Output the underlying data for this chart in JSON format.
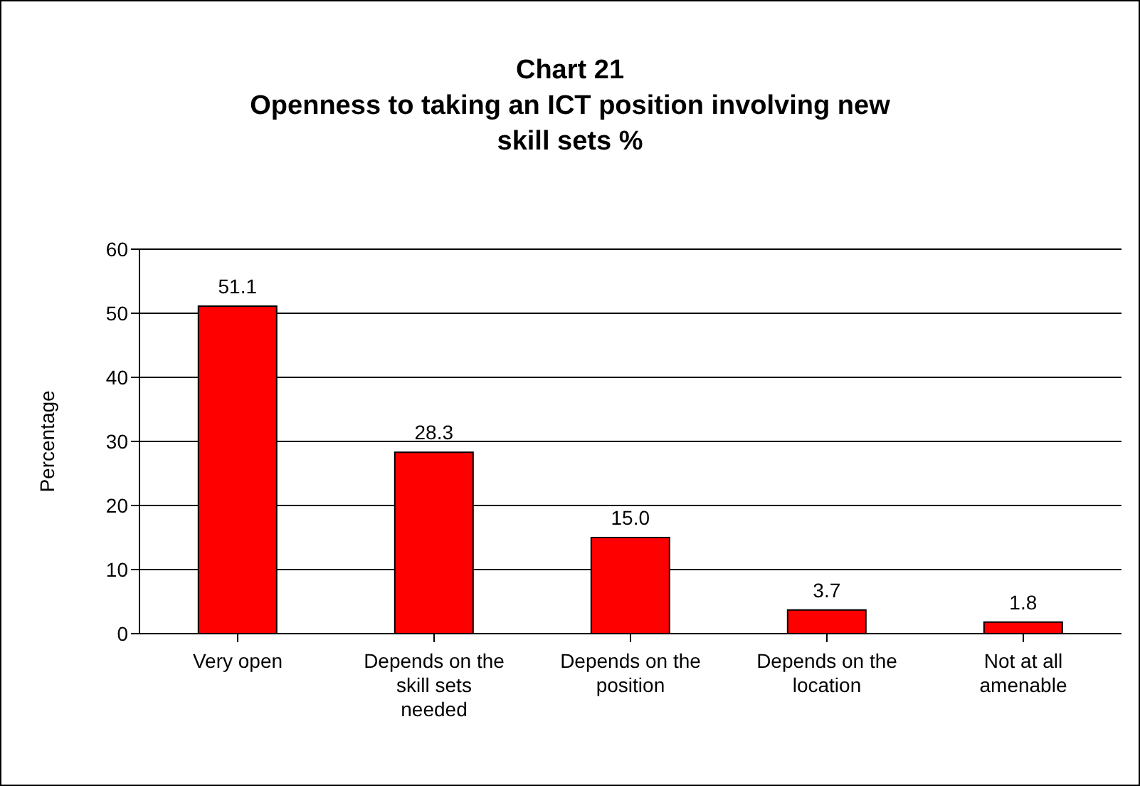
{
  "chart_data": {
    "type": "bar",
    "title": "Chart 21",
    "subtitle": "Openness to taking an ICT position involving new skill sets %",
    "ylabel": "Percentage",
    "categories": [
      "Very open",
      "Depends on the skill sets needed",
      "Depends on the position",
      "Depends on the location",
      "Not at all amenable"
    ],
    "values": [
      51.1,
      28.3,
      15.0,
      3.7,
      1.8
    ],
    "value_labels": [
      "51.1",
      "28.3",
      "15.0",
      "3.7",
      "1.8"
    ],
    "color": "#ff0000",
    "ylim": [
      0,
      60
    ],
    "yticks": [
      0,
      10,
      20,
      30,
      40,
      50,
      60
    ],
    "grid": "y",
    "legend": false
  }
}
